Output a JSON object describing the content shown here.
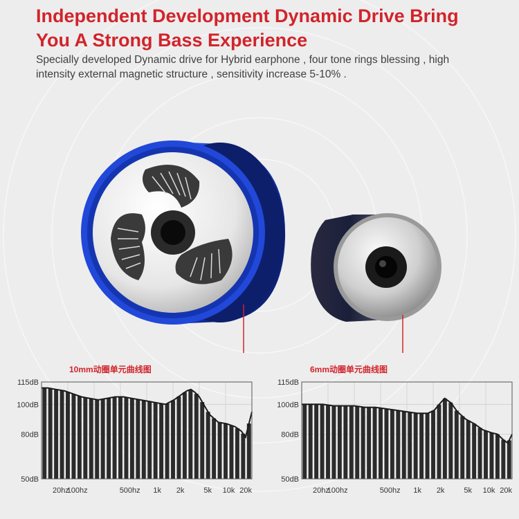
{
  "headline": "Independent Development Dynamic Drive Bring You A Strong Bass Experience",
  "subtext": "Specially developed Dynamic drive for Hybrid earphone , four tone rings blessing , high intensity external magnetic structure , sensitivity increase 5-10% .",
  "colors": {
    "accent": "#d1242b",
    "blue_ring": "#1b3fbf",
    "background": "#ededed"
  },
  "charts": [
    {
      "title": "10mm动圈单元曲线图",
      "y_ticks": [
        "115dB",
        "100dB",
        "80dB",
        "50dB"
      ],
      "x_ticks": [
        "20hz",
        "100hz",
        "500hz",
        "1k",
        "2k",
        "5k",
        "10k",
        "20k"
      ]
    },
    {
      "title": "6mm动圈单元曲线图",
      "y_ticks": [
        "115dB",
        "100dB",
        "80dB",
        "50dB"
      ],
      "x_ticks": [
        "20hz",
        "100hz",
        "500hz",
        "1k",
        "2k",
        "5k",
        "10k",
        "20k"
      ]
    }
  ],
  "chart_data": [
    {
      "type": "area",
      "title": "10mm动圈单元曲线图",
      "y_ticks": [
        115,
        100,
        80,
        50
      ],
      "x_ticks": [
        "20hz",
        "100hz",
        "500hz",
        "1k",
        "2k",
        "5k",
        "10k",
        "20k"
      ],
      "ylim": [
        50,
        115
      ],
      "x_position": [
        0,
        0.03,
        0.07,
        0.11,
        0.15,
        0.19,
        0.23,
        0.27,
        0.31,
        0.35,
        0.39,
        0.43,
        0.47,
        0.51,
        0.55,
        0.59,
        0.63,
        0.67,
        0.69,
        0.71,
        0.73,
        0.75,
        0.77,
        0.8,
        0.84,
        0.88,
        0.92,
        0.95,
        0.97,
        1.0
      ],
      "values": [
        111,
        111,
        110,
        109,
        107,
        105,
        104,
        103,
        104,
        105,
        105,
        104,
        103,
        102,
        101,
        100,
        103,
        107,
        109,
        110,
        108,
        105,
        100,
        93,
        88,
        87,
        85,
        82,
        78,
        95
      ],
      "grid": true
    },
    {
      "type": "area",
      "title": "6mm动圈单元曲线图",
      "y_ticks": [
        115,
        100,
        80,
        50
      ],
      "x_ticks": [
        "20hz",
        "100hz",
        "500hz",
        "1k",
        "2k",
        "5k",
        "10k",
        "20k"
      ],
      "ylim": [
        50,
        115
      ],
      "x_position": [
        0,
        0.05,
        0.1,
        0.15,
        0.2,
        0.25,
        0.3,
        0.35,
        0.4,
        0.45,
        0.5,
        0.55,
        0.6,
        0.63,
        0.66,
        0.68,
        0.71,
        0.74,
        0.78,
        0.82,
        0.86,
        0.9,
        0.93,
        0.96,
        0.98,
        1.0
      ],
      "values": [
        100,
        100,
        100,
        99,
        99,
        99,
        98,
        98,
        97,
        96,
        95,
        94,
        94,
        96,
        101,
        104,
        101,
        95,
        90,
        87,
        83,
        81,
        80,
        76,
        74,
        80
      ],
      "grid": true
    }
  ]
}
